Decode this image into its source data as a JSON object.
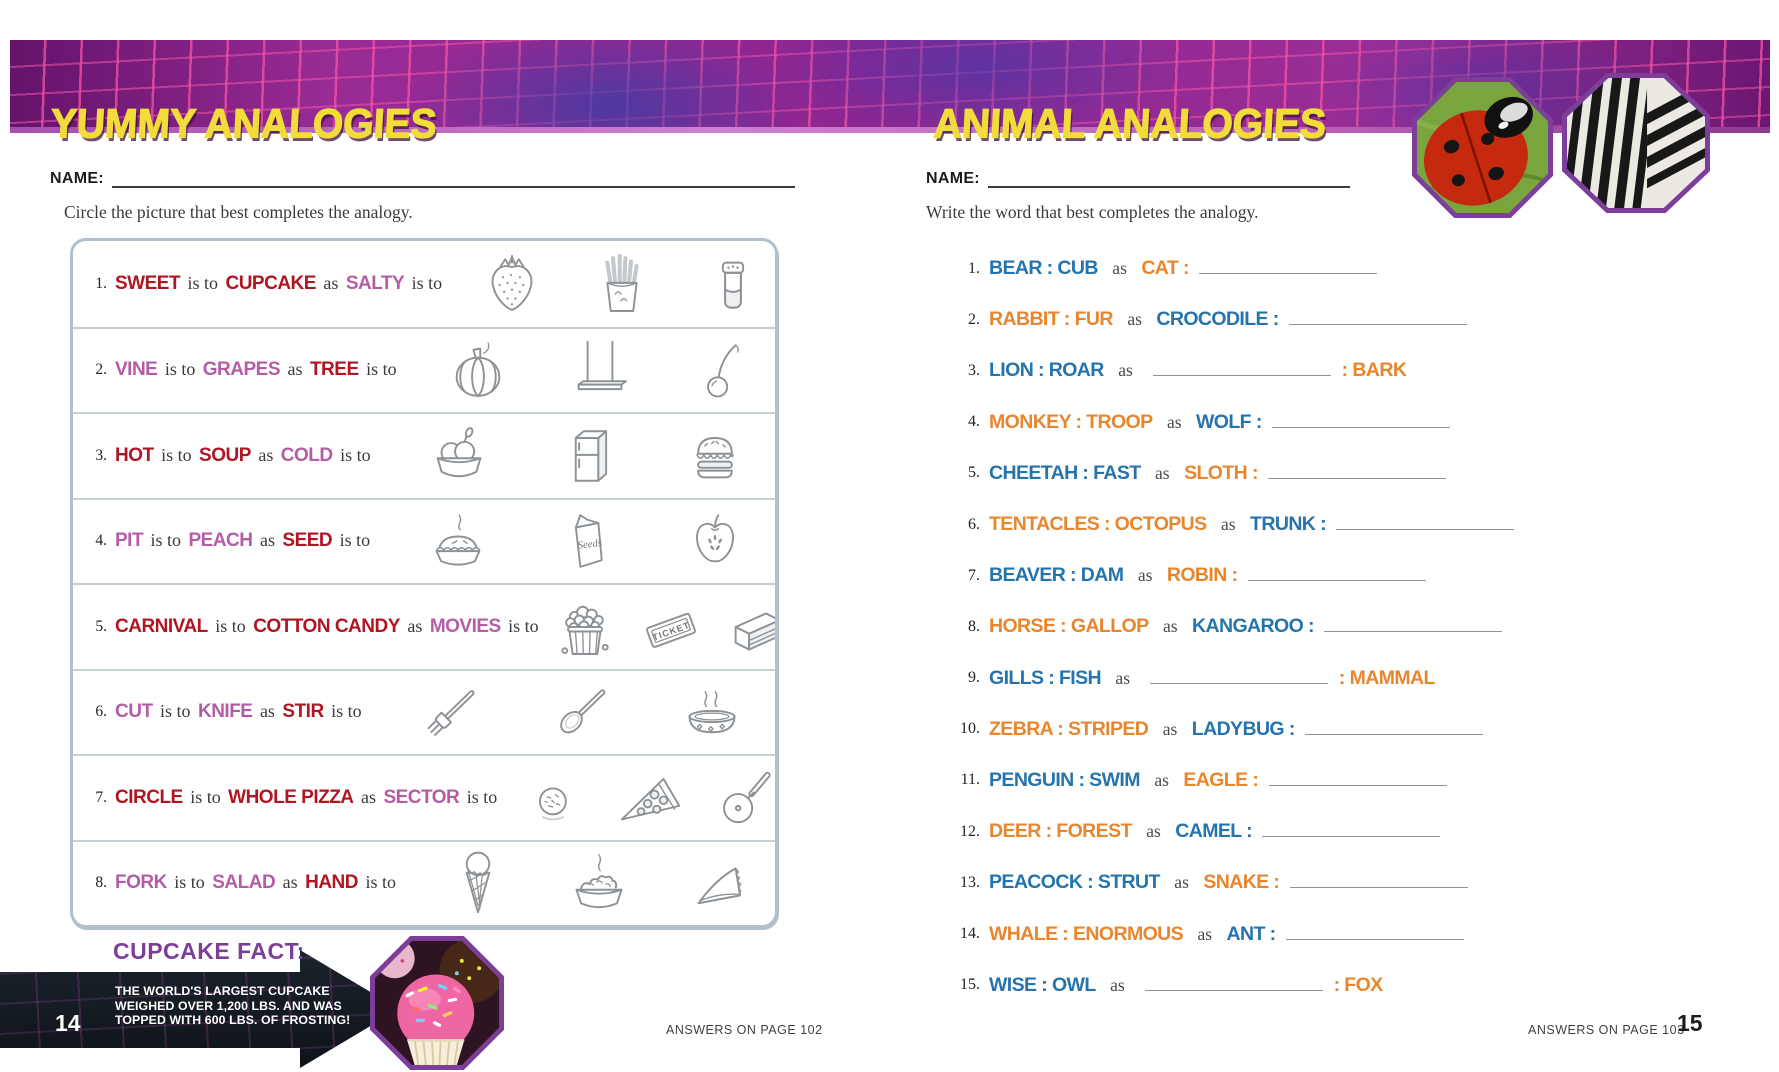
{
  "page": {
    "left": {
      "title": "YUMMY ANALOGIES",
      "name_label": "NAME:",
      "instruction": "Circle the picture that best completes the analogy.",
      "rows": [
        {
          "num": "1.",
          "segments": [
            {
              "t": "SWEET",
              "s": "red"
            },
            {
              "t": "is to",
              "s": "plain"
            },
            {
              "t": "CUPCAKE",
              "s": "red"
            },
            {
              "t": "as",
              "s": "plain"
            },
            {
              "t": "SALTY",
              "s": "mauve"
            },
            {
              "t": "is to",
              "s": "plain"
            }
          ],
          "icons": [
            "strawberry",
            "french-fries",
            "salt-shaker"
          ]
        },
        {
          "num": "2.",
          "segments": [
            {
              "t": "VINE",
              "s": "mauve"
            },
            {
              "t": "is to",
              "s": "plain"
            },
            {
              "t": "GRAPES",
              "s": "mauve"
            },
            {
              "t": "as",
              "s": "plain"
            },
            {
              "t": "TREE",
              "s": "red"
            },
            {
              "t": "is to",
              "s": "plain"
            }
          ],
          "icons": [
            "pumpkin",
            "swing",
            "cherry"
          ]
        },
        {
          "num": "3.",
          "segments": [
            {
              "t": "HOT",
              "s": "red"
            },
            {
              "t": "is to",
              "s": "plain"
            },
            {
              "t": "SOUP",
              "s": "red"
            },
            {
              "t": "as",
              "s": "plain"
            },
            {
              "t": "COLD",
              "s": "mauve"
            },
            {
              "t": "is to",
              "s": "plain"
            }
          ],
          "icons": [
            "ice-cream-bowl",
            "refrigerator",
            "hamburger"
          ]
        },
        {
          "num": "4.",
          "segments": [
            {
              "t": "PIT",
              "s": "mauve"
            },
            {
              "t": "is to",
              "s": "plain"
            },
            {
              "t": "PEACH",
              "s": "mauve"
            },
            {
              "t": "as",
              "s": "plain"
            },
            {
              "t": "SEED",
              "s": "red"
            },
            {
              "t": "is to",
              "s": "plain"
            }
          ],
          "icons": [
            "steaming-pie",
            "seed-packet",
            "apple-half"
          ]
        },
        {
          "num": "5.",
          "segments": [
            {
              "t": "CARNIVAL",
              "s": "red"
            },
            {
              "t": "is to",
              "s": "plain"
            },
            {
              "t": "COTTON CANDY",
              "s": "red"
            },
            {
              "t": "as",
              "s": "plain"
            },
            {
              "t": "MOVIES",
              "s": "mauve"
            },
            {
              "t": "is to",
              "s": "plain"
            }
          ],
          "icons": [
            "popcorn-bucket",
            "movie-ticket",
            "cake-slice"
          ]
        },
        {
          "num": "6.",
          "segments": [
            {
              "t": "CUT",
              "s": "mauve"
            },
            {
              "t": "is to",
              "s": "plain"
            },
            {
              "t": "KNIFE",
              "s": "mauve"
            },
            {
              "t": "as",
              "s": "plain"
            },
            {
              "t": "STIR",
              "s": "red"
            },
            {
              "t": "is to",
              "s": "plain"
            }
          ],
          "icons": [
            "fork",
            "spoon",
            "soup-bowl"
          ]
        },
        {
          "num": "7.",
          "segments": [
            {
              "t": "CIRCLE",
              "s": "red"
            },
            {
              "t": "is to",
              "s": "plain"
            },
            {
              "t": "WHOLE PIZZA",
              "s": "red"
            },
            {
              "t": "as",
              "s": "plain"
            },
            {
              "t": "SECTOR",
              "s": "mauve"
            },
            {
              "t": "is to",
              "s": "plain"
            }
          ],
          "icons": [
            "meatball",
            "pizza-slice",
            "pizza-cutter"
          ]
        },
        {
          "num": "8.",
          "segments": [
            {
              "t": "FORK",
              "s": "mauve"
            },
            {
              "t": "is to",
              "s": "plain"
            },
            {
              "t": "SALAD",
              "s": "mauve"
            },
            {
              "t": "as",
              "s": "plain"
            },
            {
              "t": "HAND",
              "s": "red"
            },
            {
              "t": "is to",
              "s": "plain"
            }
          ],
          "icons": [
            "ice-cream-cone",
            "food-bowl",
            "pie-slice"
          ]
        }
      ],
      "fact_heading": "CUPCAKE FACT:",
      "fact_lines": [
        "THE WORLD'S LARGEST CUPCAKE",
        "WEIGHED OVER 1,200 LBS. AND WAS",
        "TOPPED WITH 600 LBS. OF FROSTING!"
      ],
      "page_number": "14",
      "answers_note": "ANSWERS ON PAGE 102"
    },
    "right": {
      "title": "ANIMAL ANALOGIES",
      "name_label": "NAME:",
      "instruction": "Write the word that best completes the analogy.",
      "items": [
        {
          "num": "1.",
          "parts": [
            {
              "t": "BEAR : CUB",
              "s": "blue"
            },
            {
              "t": "as",
              "s": "plain"
            },
            {
              "t": "CAT :",
              "s": "orange"
            },
            {
              "s": "blank"
            }
          ]
        },
        {
          "num": "2.",
          "parts": [
            {
              "t": "RABBIT : FUR",
              "s": "orange"
            },
            {
              "t": "as",
              "s": "plain"
            },
            {
              "t": "CROCODILE :",
              "s": "blue"
            },
            {
              "s": "blank"
            }
          ]
        },
        {
          "num": "3.",
          "parts": [
            {
              "t": "LION : ROAR",
              "s": "blue"
            },
            {
              "t": "as",
              "s": "plain"
            },
            {
              "s": "blank"
            },
            {
              "t": ": BARK",
              "s": "orange"
            }
          ]
        },
        {
          "num": "4.",
          "parts": [
            {
              "t": "MONKEY : TROOP",
              "s": "orange"
            },
            {
              "t": "as",
              "s": "plain"
            },
            {
              "t": "WOLF :",
              "s": "blue"
            },
            {
              "s": "blank"
            }
          ]
        },
        {
          "num": "5.",
          "parts": [
            {
              "t": "CHEETAH : FAST",
              "s": "blue"
            },
            {
              "t": "as",
              "s": "plain"
            },
            {
              "t": "SLOTH :",
              "s": "orange"
            },
            {
              "s": "blank"
            }
          ]
        },
        {
          "num": "6.",
          "parts": [
            {
              "t": "TENTACLES : OCTOPUS",
              "s": "orange"
            },
            {
              "t": "as",
              "s": "plain"
            },
            {
              "t": "TRUNK :",
              "s": "blue"
            },
            {
              "s": "blank"
            }
          ]
        },
        {
          "num": "7.",
          "parts": [
            {
              "t": "BEAVER : DAM",
              "s": "blue"
            },
            {
              "t": "as",
              "s": "plain"
            },
            {
              "t": "ROBIN :",
              "s": "orange"
            },
            {
              "s": "blank"
            }
          ]
        },
        {
          "num": "8.",
          "parts": [
            {
              "t": "HORSE : GALLOP",
              "s": "orange"
            },
            {
              "t": "as",
              "s": "plain"
            },
            {
              "t": "KANGAROO :",
              "s": "blue"
            },
            {
              "s": "blank"
            }
          ]
        },
        {
          "num": "9.",
          "parts": [
            {
              "t": "GILLS : FISH",
              "s": "blue"
            },
            {
              "t": "as",
              "s": "plain"
            },
            {
              "s": "blank"
            },
            {
              "t": ": MAMMAL",
              "s": "orange"
            }
          ]
        },
        {
          "num": "10.",
          "parts": [
            {
              "t": "ZEBRA : STRIPED",
              "s": "orange"
            },
            {
              "t": "as",
              "s": "plain"
            },
            {
              "t": "LADYBUG :",
              "s": "blue"
            },
            {
              "s": "blank"
            }
          ]
        },
        {
          "num": "11.",
          "parts": [
            {
              "t": "PENGUIN : SWIM",
              "s": "blue"
            },
            {
              "t": "as",
              "s": "plain"
            },
            {
              "t": "EAGLE :",
              "s": "orange"
            },
            {
              "s": "blank"
            }
          ]
        },
        {
          "num": "12.",
          "parts": [
            {
              "t": "DEER : FOREST",
              "s": "orange"
            },
            {
              "t": "as",
              "s": "plain"
            },
            {
              "t": "CAMEL :",
              "s": "blue"
            },
            {
              "s": "blank"
            }
          ]
        },
        {
          "num": "13.",
          "parts": [
            {
              "t": "PEACOCK : STRUT",
              "s": "blue"
            },
            {
              "t": "as",
              "s": "plain"
            },
            {
              "t": "SNAKE :",
              "s": "orange"
            },
            {
              "s": "blank"
            }
          ]
        },
        {
          "num": "14.",
          "parts": [
            {
              "t": "WHALE : ENORMOUS",
              "s": "orange"
            },
            {
              "t": "as",
              "s": "plain"
            },
            {
              "t": "ANT :",
              "s": "blue"
            },
            {
              "s": "blank"
            }
          ]
        },
        {
          "num": "15.",
          "parts": [
            {
              "t": "WISE : OWL",
              "s": "blue"
            },
            {
              "t": "as",
              "s": "plain"
            },
            {
              "s": "blank"
            },
            {
              "t": ": FOX",
              "s": "orange"
            }
          ]
        }
      ],
      "page_number": "15",
      "answers_note": "ANSWERS ON PAGE 103"
    },
    "colors": {
      "header_magenta": "#8f2590",
      "header_grid_pink": "#f352a7",
      "title_yellow": "#f2dc3b",
      "word_red": "#b01522",
      "word_mauve": "#b55da4",
      "word_blue": "#2574ad",
      "word_orange": "#e8862d",
      "fact_purple": "#7c3e98",
      "octagon_border_purple": "#7c3e98"
    }
  }
}
